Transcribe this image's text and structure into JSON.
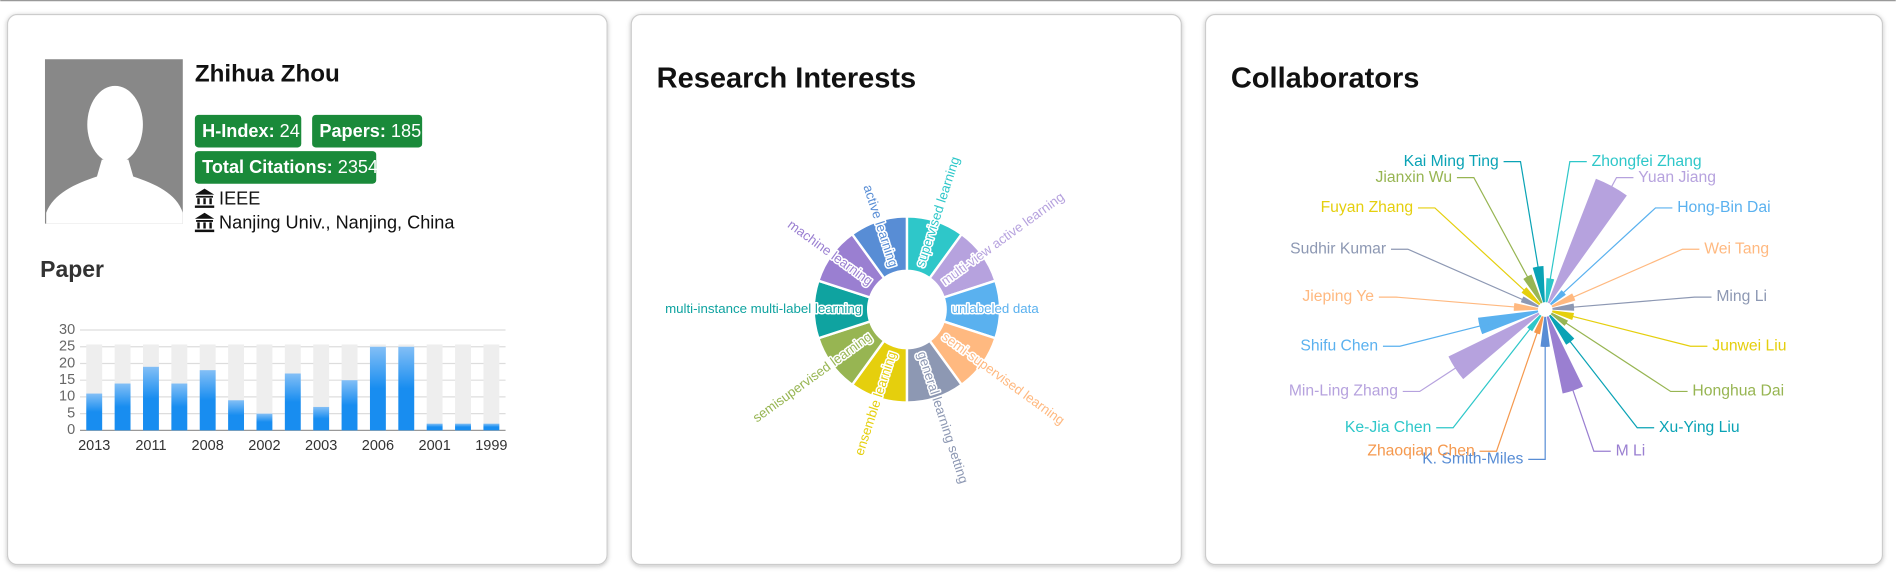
{
  "profile": {
    "name": "Zhihua Zhou",
    "h_index_label": "H-Index:",
    "h_index": 24,
    "papers_label": "Papers:",
    "papers": 185,
    "citations_label": "Total Citations:",
    "citations": 2354,
    "affiliations": [
      "IEEE",
      "Nanjing Univ., Nanjing, China"
    ]
  },
  "chart_data": [
    {
      "type": "bar",
      "title": "Paper",
      "categories": [
        "2013",
        null,
        "2011",
        null,
        "2008",
        null,
        "2002",
        null,
        "2003",
        null,
        "2006",
        null,
        "2001",
        null,
        "1999"
      ],
      "values": [
        11,
        14,
        19,
        14,
        18,
        9,
        5,
        17,
        7,
        15,
        25,
        25,
        2,
        2,
        2
      ],
      "color": "#188df0",
      "ylim": [
        0,
        30
      ],
      "yticks": [
        0,
        5,
        10,
        15,
        20,
        25,
        30
      ],
      "grid": true
    },
    {
      "type": "donut",
      "title": "Research Interests",
      "categories": [
        "supervised learning",
        "multi-view active learning",
        "unlabeled data",
        "semi-supervised learning",
        "general learning setting",
        "ensemble learning",
        "semisupervised learning",
        "multi-instance multi-label learning",
        "machine learning",
        "active learning"
      ],
      "values": [
        1,
        1,
        1,
        1,
        1,
        1,
        1,
        1,
        1,
        1
      ],
      "colors": [
        "#2ec7c9",
        "#b6a2de",
        "#5ab1ef",
        "#ffb980",
        "#8d98b3",
        "#e5cf0d",
        "#97b552",
        "#0fa3a0",
        "#9a7fd1",
        "#588dd5"
      ]
    },
    {
      "type": "polar_bar",
      "title": "Collaborators",
      "categories": [
        "Zhongfei Zhang",
        "Yuan Jiang",
        "Hong-Bin Dai",
        "Wei Tang",
        "Ming Li",
        "Junwei Liu",
        "Honghua Dai",
        "Xu-Ying Liu",
        "M Li",
        "K. Smith-Miles",
        "Zhaoqian Chen",
        "Ke-Jia Chen",
        "Min-Ling Zhang",
        "Shifu Chen",
        "Jieping Ye",
        "Sudhir Kumar",
        "Fuyan Zhang",
        "Jianxin Wu",
        "Kai Ming Ting"
      ],
      "values": [
        20,
        110,
        15,
        20,
        18,
        18,
        15,
        28,
        65,
        25,
        15,
        15,
        83,
        50,
        20,
        15,
        18,
        25,
        30
      ],
      "colors": [
        "#2ec7c9",
        "#b6a2de",
        "#5ab1ef",
        "#ffb980",
        "#8d98b3",
        "#e5cf0d",
        "#97b552",
        "#0aa3b5",
        "#9a7fd1",
        "#588dd5",
        "#f5994e",
        "#2ec7c9",
        "#b6a2de",
        "#5ab1ef",
        "#ffb980",
        "#8d98b3",
        "#e5cf0d",
        "#97b552",
        "#0aa3b5"
      ]
    }
  ]
}
